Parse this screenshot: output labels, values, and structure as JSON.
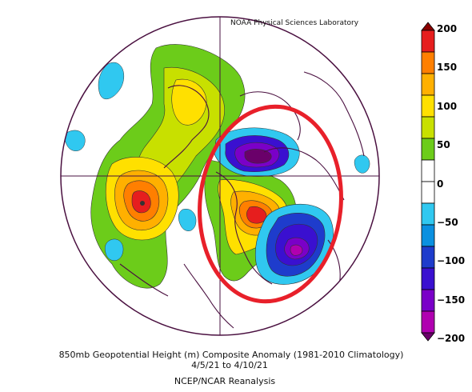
{
  "header": {
    "credit": "NOAA Physical Sciences Laboratory"
  },
  "caption": {
    "line1": "850mb Geopotential Height (m) Composite Anomaly (1981-2010 Climatology)",
    "line2": "4/5/21  to 4/10/21",
    "line3": "NCEP/NCAR Reanalysis"
  },
  "colorbar": {
    "ticks": [
      "200",
      "150",
      "100",
      "50",
      "0",
      "−50",
      "−100",
      "−150",
      "−200"
    ],
    "colors": [
      "#8b0000",
      "#e61e1e",
      "#ff7f00",
      "#ffb000",
      "#ffe000",
      "#c8e000",
      "#6ccc1a",
      "#ffffff",
      "#ffffff",
      "#30c8f0",
      "#0a90e0",
      "#1e3ccc",
      "#3a10d0",
      "#7a00c8",
      "#b000b0",
      "#6a006a"
    ]
  },
  "annotation": {
    "highlight": "red-ellipse",
    "color": "#e8202a"
  }
}
